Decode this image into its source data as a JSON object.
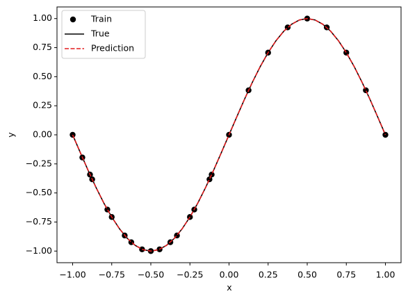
{
  "chart_data": {
    "type": "line",
    "x_label": "x",
    "y_label": "y",
    "xlim": [
      -1.1,
      1.1
    ],
    "ylim": [
      -1.1,
      1.1
    ],
    "xticks": [
      {
        "value": -1,
        "label": "−1.00"
      },
      {
        "value": -0.75,
        "label": "−0.75"
      },
      {
        "value": -0.5,
        "label": "−0.50"
      },
      {
        "value": -0.25,
        "label": "−0.25"
      },
      {
        "value": 0,
        "label": "0.00"
      },
      {
        "value": 0.25,
        "label": "0.25"
      },
      {
        "value": 0.5,
        "label": "0.50"
      },
      {
        "value": 0.75,
        "label": "0.75"
      },
      {
        "value": 1,
        "label": "1.00"
      }
    ],
    "yticks": [
      {
        "value": -1,
        "label": "−1.00"
      },
      {
        "value": -0.75,
        "label": "−0.75"
      },
      {
        "value": -0.5,
        "label": "−0.50"
      },
      {
        "value": -0.25,
        "label": "−0.25"
      },
      {
        "value": 0,
        "label": "0.00"
      },
      {
        "value": 0.25,
        "label": "0.25"
      },
      {
        "value": 0.5,
        "label": "0.50"
      },
      {
        "value": 0.75,
        "label": "0.75"
      },
      {
        "value": 1,
        "label": "1.00"
      }
    ],
    "legend": "upper left",
    "series": [
      {
        "name": "Train",
        "kind": "scatter",
        "color": "#000000",
        "x": [
          -1,
          -0.938,
          -0.889,
          -0.875,
          -0.778,
          -0.75,
          -0.667,
          -0.625,
          -0.556,
          -0.5,
          -0.444,
          -0.375,
          -0.333,
          -0.25,
          -0.222,
          -0.125,
          -0.111,
          0,
          0.125,
          0.25,
          0.375,
          0.5,
          0.625,
          0.75,
          0.875,
          1
        ],
        "values": [
          0,
          -0.195,
          -0.342,
          -0.383,
          -0.643,
          -0.707,
          -0.866,
          -0.924,
          -0.985,
          -1,
          -0.985,
          -0.924,
          -0.866,
          -0.707,
          -0.643,
          -0.383,
          -0.342,
          0,
          0.383,
          0.707,
          0.924,
          1,
          0.924,
          0.707,
          0.383,
          0
        ]
      },
      {
        "name": "True",
        "kind": "line",
        "style": "solid",
        "color": "#000000",
        "x": [
          -1,
          -0.95,
          -0.9,
          -0.85,
          -0.8,
          -0.75,
          -0.7,
          -0.65,
          -0.6,
          -0.55,
          -0.5,
          -0.45,
          -0.4,
          -0.35,
          -0.3,
          -0.25,
          -0.2,
          -0.15,
          -0.1,
          -0.05,
          0,
          0.05,
          0.1,
          0.15,
          0.2,
          0.25,
          0.3,
          0.35,
          0.4,
          0.45,
          0.5,
          0.55,
          0.6,
          0.65,
          0.7,
          0.75,
          0.8,
          0.85,
          0.9,
          0.95,
          1
        ],
        "values": [
          0,
          -0.156,
          -0.309,
          -0.454,
          -0.588,
          -0.707,
          -0.809,
          -0.891,
          -0.951,
          -0.988,
          -1,
          -0.988,
          -0.951,
          -0.891,
          -0.809,
          -0.707,
          -0.588,
          -0.454,
          -0.309,
          -0.156,
          0,
          0.156,
          0.309,
          0.454,
          0.588,
          0.707,
          0.809,
          0.891,
          0.951,
          0.988,
          1,
          0.988,
          0.951,
          0.891,
          0.809,
          0.707,
          0.588,
          0.454,
          0.309,
          0.156,
          0
        ]
      },
      {
        "name": "Prediction",
        "kind": "line",
        "style": "dashed",
        "color": "#e31a1c",
        "x": [
          -1,
          -0.95,
          -0.9,
          -0.85,
          -0.8,
          -0.75,
          -0.7,
          -0.65,
          -0.6,
          -0.55,
          -0.5,
          -0.45,
          -0.4,
          -0.35,
          -0.3,
          -0.25,
          -0.2,
          -0.15,
          -0.1,
          -0.05,
          0,
          0.05,
          0.1,
          0.15,
          0.2,
          0.25,
          0.3,
          0.35,
          0.4,
          0.45,
          0.5,
          0.55,
          0.6,
          0.65,
          0.7,
          0.75,
          0.8,
          0.85,
          0.9,
          0.95,
          1
        ],
        "values": [
          0,
          -0.156,
          -0.309,
          -0.454,
          -0.588,
          -0.707,
          -0.809,
          -0.891,
          -0.951,
          -0.988,
          -1,
          -0.988,
          -0.951,
          -0.891,
          -0.809,
          -0.707,
          -0.588,
          -0.454,
          -0.309,
          -0.156,
          0,
          0.156,
          0.309,
          0.454,
          0.588,
          0.707,
          0.809,
          0.891,
          0.951,
          0.988,
          1,
          0.988,
          0.951,
          0.891,
          0.809,
          0.707,
          0.588,
          0.454,
          0.309,
          0.156,
          0
        ]
      }
    ]
  }
}
